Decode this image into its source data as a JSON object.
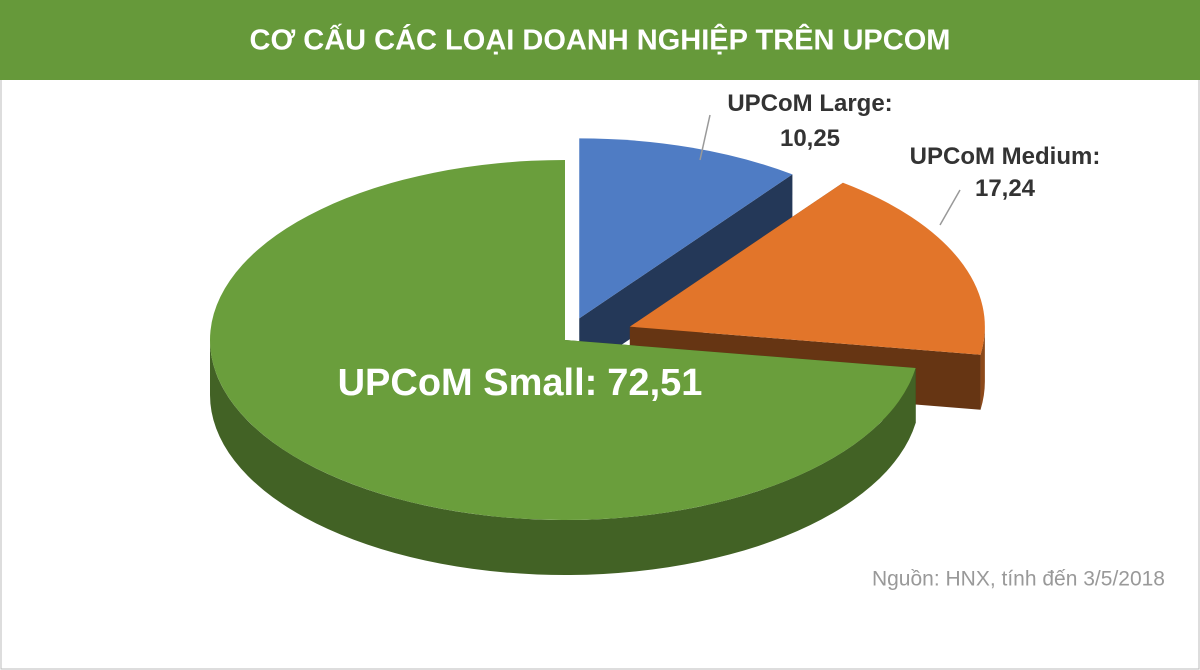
{
  "chart_data": {
    "type": "pie",
    "title": "CƠ CẤU CÁC LOẠI DOANH NGHIỆP TRÊN UPCOM",
    "categories": [
      "UPCoM Large:",
      "UPCoM Medium:",
      "UPCoM Small:"
    ],
    "values": [
      10.25,
      17.24,
      72.51
    ],
    "value_labels": [
      "10,25",
      "17,24",
      "72,51"
    ],
    "colors": [
      "#4f7cc4",
      "#e2752a",
      "#6a9e3c"
    ],
    "source": "Nguồn: HNX, tính đến 3/5/2018"
  }
}
